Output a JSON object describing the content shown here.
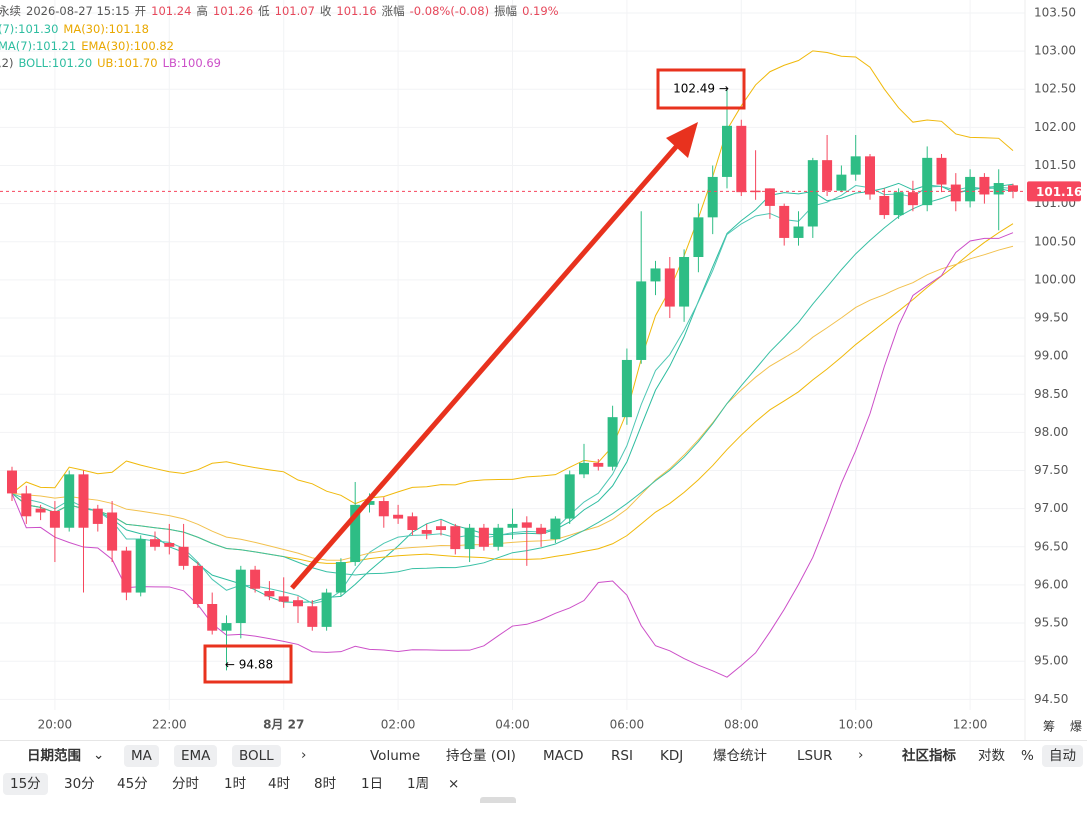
{
  "header": {
    "line1": [
      "永续",
      "2026-08-27 15:15",
      "开",
      "101.24",
      "高",
      "101.26",
      "低",
      "101.07",
      "收",
      "101.16",
      "涨幅",
      "-0.08%(-0.08)",
      "振幅",
      "0.19%"
    ],
    "line2": [
      "(7):101.30",
      "MA(30):101.18"
    ],
    "line3": [
      "MA(7):101.21",
      "EMA(30):100.82"
    ],
    "line4": [
      ",2)",
      "BOLL:101.20",
      "UB:101.70",
      "LB:100.69"
    ]
  },
  "chart_data": {
    "type": "candlestick",
    "up_color": "#2ebd85",
    "down_color": "#f6465d",
    "categories": [
      null,
      null,
      null,
      "20:00",
      null,
      null,
      null,
      null,
      null,
      null,
      null,
      "22:00",
      null,
      null,
      null,
      null,
      null,
      null,
      null,
      "8月 27",
      null,
      null,
      null,
      null,
      null,
      null,
      null,
      "02:00",
      null,
      null,
      null,
      null,
      null,
      null,
      null,
      "04:00",
      null,
      null,
      null,
      null,
      null,
      null,
      null,
      "06:00",
      null,
      null,
      null,
      null,
      null,
      null,
      null,
      "08:00",
      null,
      null,
      null,
      null,
      null,
      null,
      null,
      "10:00",
      null,
      null,
      null,
      null,
      null,
      null,
      null,
      "12:00",
      null,
      null,
      null
    ],
    "open": [
      97.5,
      97.2,
      97.0,
      96.97,
      96.75,
      97.45,
      97.0,
      96.95,
      96.45,
      95.9,
      96.6,
      96.55,
      96.5,
      96.25,
      95.75,
      95.4,
      95.5,
      96.2,
      95.92,
      95.85,
      95.8,
      95.72,
      95.45,
      95.9,
      96.3,
      97.05,
      97.1,
      96.92,
      96.9,
      96.72,
      96.77,
      96.77,
      96.47,
      96.75,
      96.5,
      96.75,
      96.82,
      96.75,
      96.6,
      96.87,
      97.45,
      97.6,
      97.55,
      98.2,
      98.95,
      99.98,
      100.15,
      99.65,
      100.3,
      100.82,
      101.35,
      102.02,
      101.17,
      101.2,
      100.97,
      100.55,
      100.7,
      101.57,
      101.17,
      101.38,
      101.62,
      101.1,
      100.85,
      101.15,
      100.98,
      101.6,
      101.25,
      101.03,
      101.35,
      101.12,
      101.24
    ],
    "high": [
      97.55,
      97.3,
      97.05,
      97.1,
      97.5,
      97.5,
      97.05,
      97.1,
      96.5,
      96.65,
      96.7,
      96.8,
      96.8,
      96.3,
      95.9,
      95.6,
      96.25,
      96.25,
      96.05,
      96.1,
      95.85,
      95.8,
      95.95,
      96.35,
      97.35,
      97.2,
      97.15,
      97.05,
      96.95,
      96.8,
      96.85,
      96.8,
      96.8,
      96.8,
      96.8,
      97.0,
      96.9,
      96.8,
      96.9,
      97.5,
      97.85,
      97.65,
      98.35,
      99.1,
      100.9,
      100.25,
      100.3,
      100.4,
      101.0,
      101.5,
      102.49,
      102.1,
      101.7,
      101.2,
      101.0,
      100.9,
      101.6,
      101.9,
      101.5,
      101.9,
      101.65,
      101.2,
      101.2,
      101.3,
      101.75,
      101.65,
      101.4,
      101.45,
      101.4,
      101.45,
      101.26
    ],
    "low": [
      97.1,
      96.8,
      96.85,
      96.3,
      96.7,
      95.9,
      96.7,
      96.3,
      95.8,
      95.85,
      96.45,
      96.4,
      96.2,
      95.7,
      95.35,
      94.88,
      95.3,
      95.9,
      95.8,
      95.7,
      95.5,
      95.4,
      95.4,
      95.85,
      96.25,
      96.95,
      96.75,
      96.8,
      96.65,
      96.6,
      96.65,
      96.4,
      96.3,
      96.45,
      96.45,
      96.6,
      96.25,
      96.5,
      96.55,
      96.8,
      97.4,
      97.5,
      97.5,
      98.1,
      98.9,
      99.8,
      99.5,
      99.45,
      100.1,
      100.6,
      101.2,
      101.1,
      101.05,
      100.8,
      100.45,
      100.45,
      100.55,
      101.1,
      101.15,
      101.3,
      101.05,
      100.8,
      100.8,
      100.9,
      100.9,
      101.15,
      100.9,
      100.95,
      101.0,
      100.65,
      101.07
    ],
    "close": [
      97.2,
      96.9,
      96.95,
      96.75,
      97.45,
      96.75,
      96.8,
      96.45,
      95.9,
      96.6,
      96.5,
      96.5,
      96.25,
      95.75,
      95.4,
      95.5,
      96.2,
      95.95,
      95.85,
      95.78,
      95.72,
      95.45,
      95.9,
      96.3,
      97.05,
      97.1,
      96.9,
      96.87,
      96.72,
      96.67,
      96.72,
      96.47,
      96.75,
      96.5,
      96.75,
      96.8,
      96.75,
      96.67,
      96.87,
      97.45,
      97.6,
      97.55,
      98.2,
      98.95,
      99.98,
      100.15,
      99.65,
      100.3,
      100.82,
      101.35,
      102.02,
      101.15,
      101.15,
      100.97,
      100.55,
      100.7,
      101.57,
      101.17,
      101.38,
      101.62,
      101.12,
      100.85,
      101.15,
      100.98,
      101.6,
      101.25,
      101.03,
      101.35,
      101.12,
      101.27,
      101.16
    ],
    "ylim": [
      94.36,
      103.67
    ],
    "yticks": [
      {
        "value": 94.5,
        "label": "94.50"
      },
      {
        "value": 95,
        "label": "95.00"
      },
      {
        "value": 95.5,
        "label": "95.50"
      },
      {
        "value": 96,
        "label": "96.00"
      },
      {
        "value": 96.5,
        "label": "96.50"
      },
      {
        "value": 97,
        "label": "97.00"
      },
      {
        "value": 97.5,
        "label": "97.50"
      },
      {
        "value": 98,
        "label": "98.00"
      },
      {
        "value": 98.5,
        "label": "98.50"
      },
      {
        "value": 99,
        "label": "99.00"
      },
      {
        "value": 99.5,
        "label": "99.50"
      },
      {
        "value": 100,
        "label": "100.00"
      },
      {
        "value": 100.5,
        "label": "100.50"
      },
      {
        "value": 101,
        "label": "101.00"
      },
      {
        "value": 101.5,
        "label": "101.50"
      },
      {
        "value": 102,
        "label": "102.00"
      },
      {
        "value": 102.5,
        "label": "102.50"
      },
      {
        "value": 103,
        "label": "103.00"
      },
      {
        "value": 103.5,
        "label": "103.50"
      }
    ],
    "grid": true,
    "annotations": [
      "102.49 →",
      "← 94.88"
    ]
  },
  "side": [
    "筹",
    "爆"
  ],
  "toolbar": {
    "row1": [
      "日期范围",
      "MA",
      "EMA",
      "BOLL",
      "Volume",
      "持仓量 (OI)",
      "MACD",
      "RSI",
      "KDJ",
      "爆仓统计",
      "LSUR",
      "社区指标",
      "对数",
      "%",
      "自动"
    ],
    "row2": [
      "15分",
      "30分",
      "45分",
      "分时",
      "1时",
      "4时",
      "8时",
      "1日",
      "1周",
      "×"
    ]
  }
}
